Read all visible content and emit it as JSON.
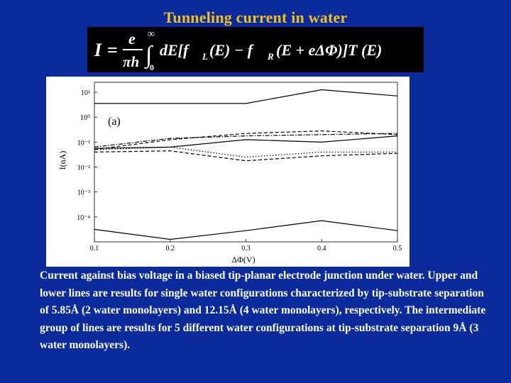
{
  "slide": {
    "title": "Tunneling current in water",
    "formula": {
      "lhs": "I",
      "equals": "=",
      "frac_num": "e",
      "frac_den": "πh",
      "upper_limit": "∞",
      "lower_limit": "0",
      "integrand": "dE[f",
      "fl_sub": "L",
      "term1": "(E) − f",
      "fr_sub": "R",
      "term2": "(E + eΔΦ)]T (E)"
    },
    "caption": "Current against bias voltage in a biased tip-planar electrode junction under water. Upper and lower lines are results for single water configurations characterized by tip-substrate separation of 5.85Å (2 water monolayers) and 12.15Å (4 water monolayers), respectively. The intermediate group of lines are results for 5 different water configurations at tip-substrate separation 9Å (3 water monolayers)."
  },
  "chart_data": {
    "type": "line",
    "panel_label": "(a)",
    "xlabel": "ΔΦ(V)",
    "ylabel": "I(nA)",
    "scale_y": "log",
    "x_ticks": [
      "0.1",
      "0.2",
      "0.3",
      "0.4",
      "0.5"
    ],
    "y_tick_labels": [
      "10¹",
      "10⁰",
      "10⁻¹",
      "10⁻²",
      "10⁻³",
      "10⁻⁴"
    ],
    "y_tick_exponents": [
      1,
      0,
      -1,
      -2,
      -3,
      -4
    ],
    "xlim": [
      0.1,
      0.5
    ],
    "ylim_exponent": [
      -5,
      1.4
    ],
    "x": [
      0.1,
      0.2,
      0.3,
      0.4,
      0.5
    ],
    "series": [
      {
        "group": "upper",
        "style": "solid",
        "values_log10": [
          0.55,
          0.55,
          0.55,
          1.1,
          0.85
        ]
      },
      {
        "group": "intermediate",
        "style": "dashed",
        "values_log10": [
          -1.3,
          -0.9,
          -0.65,
          -0.55,
          -0.7
        ]
      },
      {
        "group": "intermediate",
        "style": "dashdot",
        "values_log10": [
          -1.2,
          -0.85,
          -0.75,
          -0.7,
          -0.65
        ]
      },
      {
        "group": "intermediate",
        "style": "solid",
        "values_log10": [
          -1.25,
          -1.2,
          -0.9,
          -1.0,
          -0.75
        ]
      },
      {
        "group": "intermediate",
        "style": "dotted",
        "values_log10": [
          -1.3,
          -1.2,
          -1.6,
          -1.4,
          -1.4
        ]
      },
      {
        "group": "intermediate",
        "style": "dashed",
        "values_log10": [
          -1.4,
          -1.35,
          -1.75,
          -1.55,
          -1.45
        ]
      },
      {
        "group": "lower",
        "style": "solid",
        "values_log10": [
          -4.5,
          -4.9,
          -4.55,
          -4.15,
          -4.55
        ]
      }
    ],
    "colors": {
      "lines": "#000000",
      "panel": "#ffffff"
    }
  },
  "colors": {
    "background": "#0b2a9c",
    "title": "#f0c020",
    "caption": "#ffffff"
  }
}
